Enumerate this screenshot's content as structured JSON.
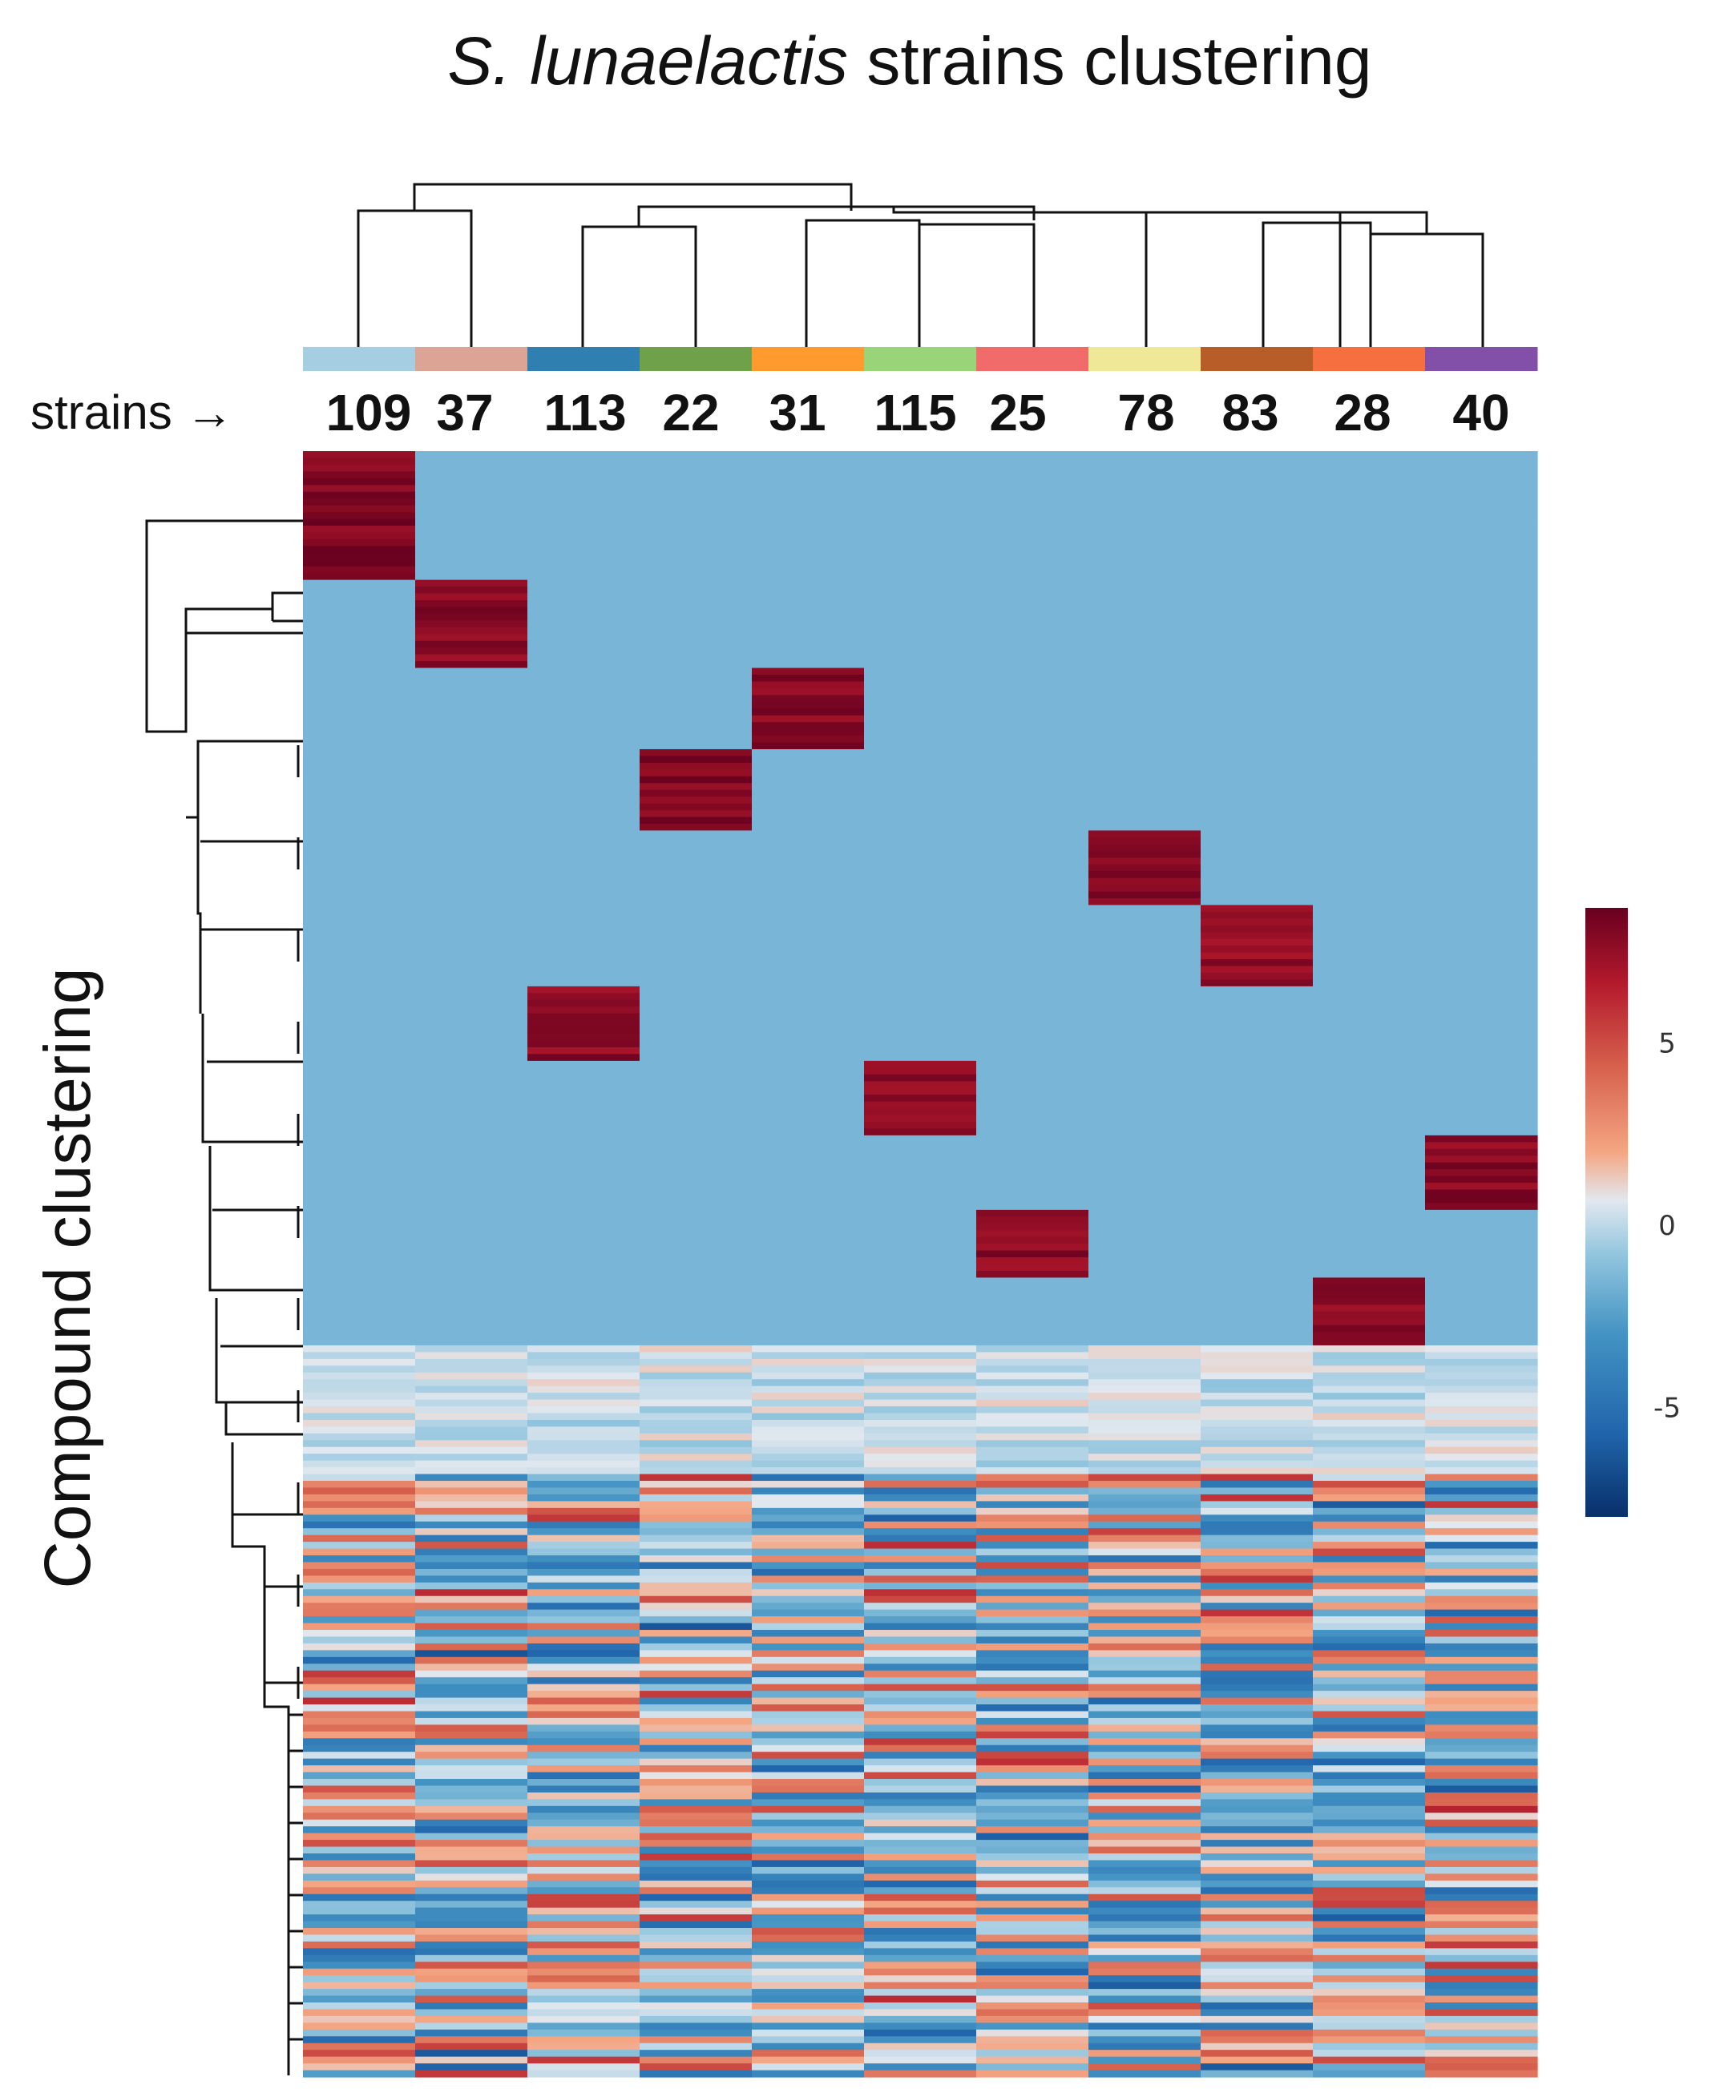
{
  "chart_data": {
    "type": "heatmap",
    "title_italic": "S. lunaelactis",
    "title_rest": " strains clustering",
    "ylabel": "Compound clustering",
    "strains_prefix": "strains →",
    "columns": [
      "109",
      "37",
      "113",
      "22",
      "31",
      "115",
      "25",
      "78",
      "83",
      "28",
      "40"
    ],
    "column_colors": [
      "#a6cee3",
      "#dba495",
      "#2f7fb0",
      "#6fa04a",
      "#ff9a2e",
      "#9ad479",
      "#f26b6b",
      "#efe896",
      "#b85c28",
      "#f5703e",
      "#8250a8"
    ],
    "colorbar": {
      "min": -8,
      "max": 8.7,
      "ticks": [
        5,
        0,
        -5
      ]
    },
    "background_value": -1.5,
    "specific_blocks": [
      {
        "strain": "109",
        "row_start": 0,
        "row_end": 19,
        "value": 8.2
      },
      {
        "strain": "37",
        "row_start": 19,
        "row_end": 32,
        "value": 8.0
      },
      {
        "strain": "31",
        "row_start": 32,
        "row_end": 44,
        "value": 8.1
      },
      {
        "strain": "22",
        "row_start": 44,
        "row_end": 56,
        "value": 8.1
      },
      {
        "strain": "78",
        "row_start": 56,
        "row_end": 67,
        "value": 8.0
      },
      {
        "strain": "83",
        "row_start": 67,
        "row_end": 79,
        "value": 7.8
      },
      {
        "strain": "113",
        "row_start": 79,
        "row_end": 90,
        "value": 7.9
      },
      {
        "strain": "115",
        "row_start": 90,
        "row_end": 101,
        "value": 8.0
      },
      {
        "strain": "40",
        "row_start": 101,
        "row_end": 112,
        "value": 8.0
      },
      {
        "strain": "25",
        "row_start": 112,
        "row_end": 122,
        "value": 7.9
      },
      {
        "strain": "28",
        "row_start": 122,
        "row_end": 132,
        "value": 7.9
      }
    ],
    "total_rows": 240,
    "near_zero_rows": [
      132,
      151
    ],
    "variable_rows": [
      151,
      240
    ],
    "value_range": [
      -8,
      8.7
    ]
  }
}
